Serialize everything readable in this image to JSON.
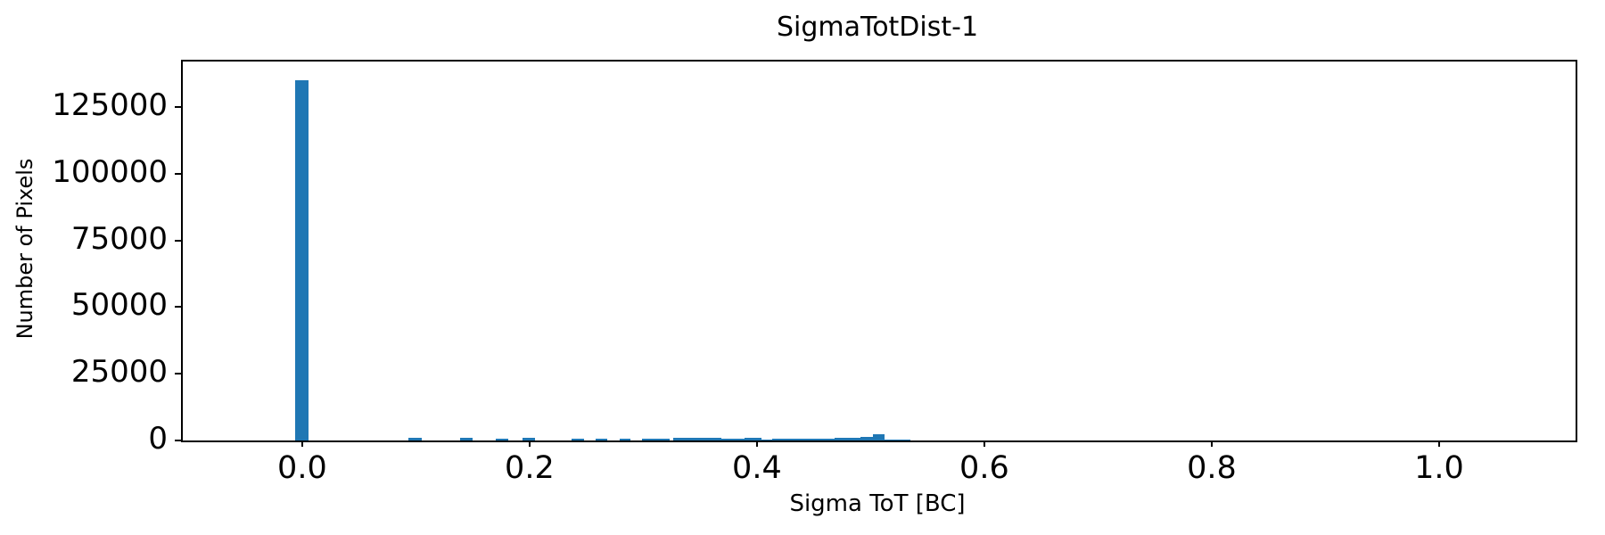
{
  "chart_data": {
    "type": "bar",
    "title": "SigmaTotDist-1",
    "xlabel": "Sigma ToT [BC]",
    "ylabel": "Number of Pixels",
    "bar_color": "#1f77b4",
    "background_color": "#ffffff",
    "grid": false,
    "legend": null,
    "xlim": [
      -0.105,
      1.12
    ],
    "ylim": [
      0,
      142000
    ],
    "x_ticks": [
      0.0,
      0.2,
      0.4,
      0.6,
      0.8,
      1.0
    ],
    "x_tick_labels": [
      "0.0",
      "0.2",
      "0.4",
      "0.6",
      "0.8",
      "1.0"
    ],
    "y_ticks": [
      0,
      25000,
      50000,
      75000,
      100000,
      125000
    ],
    "y_tick_labels": [
      "0",
      "25000",
      "50000",
      "75000",
      "100000",
      "125000"
    ],
    "bars": [
      {
        "x0": -0.006,
        "x1": 0.006,
        "value": 135000
      },
      {
        "x0": 0.093,
        "x1": 0.105,
        "value": 900
      },
      {
        "x0": 0.139,
        "x1": 0.15,
        "value": 900
      },
      {
        "x0": 0.17,
        "x1": 0.181,
        "value": 800
      },
      {
        "x0": 0.194,
        "x1": 0.205,
        "value": 900
      },
      {
        "x0": 0.237,
        "x1": 0.248,
        "value": 800
      },
      {
        "x0": 0.258,
        "x1": 0.268,
        "value": 800
      },
      {
        "x0": 0.279,
        "x1": 0.289,
        "value": 800
      },
      {
        "x0": 0.299,
        "x1": 0.323,
        "value": 600
      },
      {
        "x0": 0.326,
        "x1": 0.369,
        "value": 900
      },
      {
        "x0": 0.369,
        "x1": 0.389,
        "value": 550
      },
      {
        "x0": 0.389,
        "x1": 0.404,
        "value": 1100
      },
      {
        "x0": 0.404,
        "x1": 0.413,
        "value": 300
      },
      {
        "x0": 0.413,
        "x1": 0.468,
        "value": 750
      },
      {
        "x0": 0.468,
        "x1": 0.491,
        "value": 1150
      },
      {
        "x0": 0.491,
        "x1": 0.502,
        "value": 1500
      },
      {
        "x0": 0.502,
        "x1": 0.512,
        "value": 2300
      },
      {
        "x0": 0.512,
        "x1": 0.535,
        "value": 500
      }
    ]
  }
}
